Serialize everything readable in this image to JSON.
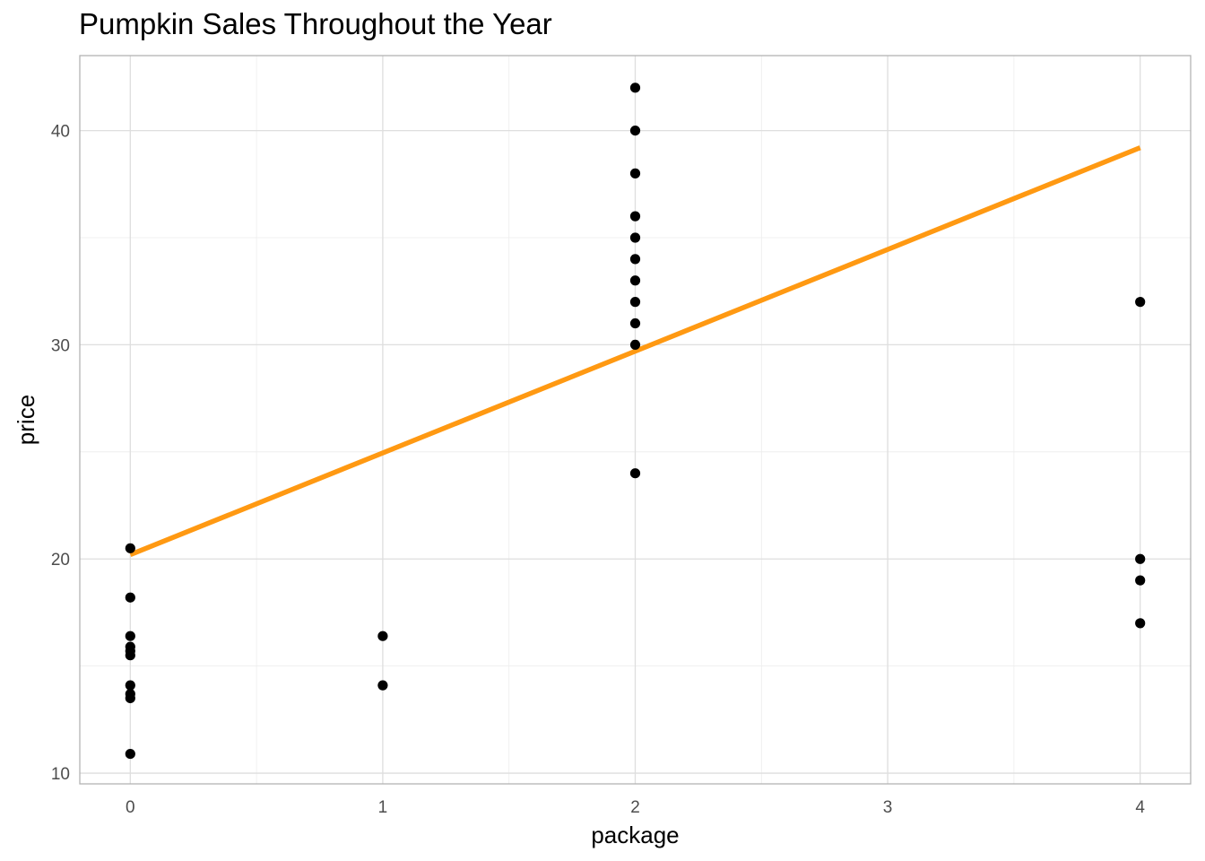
{
  "chart_data": {
    "type": "scatter",
    "title": "Pumpkin Sales Throughout the Year",
    "xlabel": "package",
    "ylabel": "price",
    "xlim": [
      -0.2,
      4.2
    ],
    "ylim": [
      9.5,
      43.5
    ],
    "x_ticks": [
      0,
      1,
      2,
      3,
      4
    ],
    "x_minor_ticks": [
      0.5,
      1.5,
      2.5,
      3.5
    ],
    "y_ticks": [
      10,
      20,
      30,
      40
    ],
    "y_minor_ticks": [
      15,
      25,
      35
    ],
    "grid": true,
    "point_color": "#000000",
    "points": [
      {
        "x": 0,
        "y": 20.5
      },
      {
        "x": 0,
        "y": 18.2
      },
      {
        "x": 0,
        "y": 16.4
      },
      {
        "x": 0,
        "y": 15.9
      },
      {
        "x": 0,
        "y": 15.7
      },
      {
        "x": 0,
        "y": 15.5
      },
      {
        "x": 0,
        "y": 14.1
      },
      {
        "x": 0,
        "y": 13.7
      },
      {
        "x": 0,
        "y": 13.5
      },
      {
        "x": 0,
        "y": 10.9
      },
      {
        "x": 1,
        "y": 16.4
      },
      {
        "x": 1,
        "y": 14.1
      },
      {
        "x": 2,
        "y": 42
      },
      {
        "x": 2,
        "y": 40
      },
      {
        "x": 2,
        "y": 38
      },
      {
        "x": 2,
        "y": 36
      },
      {
        "x": 2,
        "y": 35
      },
      {
        "x": 2,
        "y": 34
      },
      {
        "x": 2,
        "y": 33
      },
      {
        "x": 2,
        "y": 32
      },
      {
        "x": 2,
        "y": 31
      },
      {
        "x": 2,
        "y": 30
      },
      {
        "x": 2,
        "y": 24
      },
      {
        "x": 4,
        "y": 32
      },
      {
        "x": 4,
        "y": 20
      },
      {
        "x": 4,
        "y": 19
      },
      {
        "x": 4,
        "y": 17
      }
    ],
    "fit_line": {
      "color": "#FF9912",
      "x": [
        0,
        4
      ],
      "y": [
        20.2,
        39.2
      ]
    }
  }
}
